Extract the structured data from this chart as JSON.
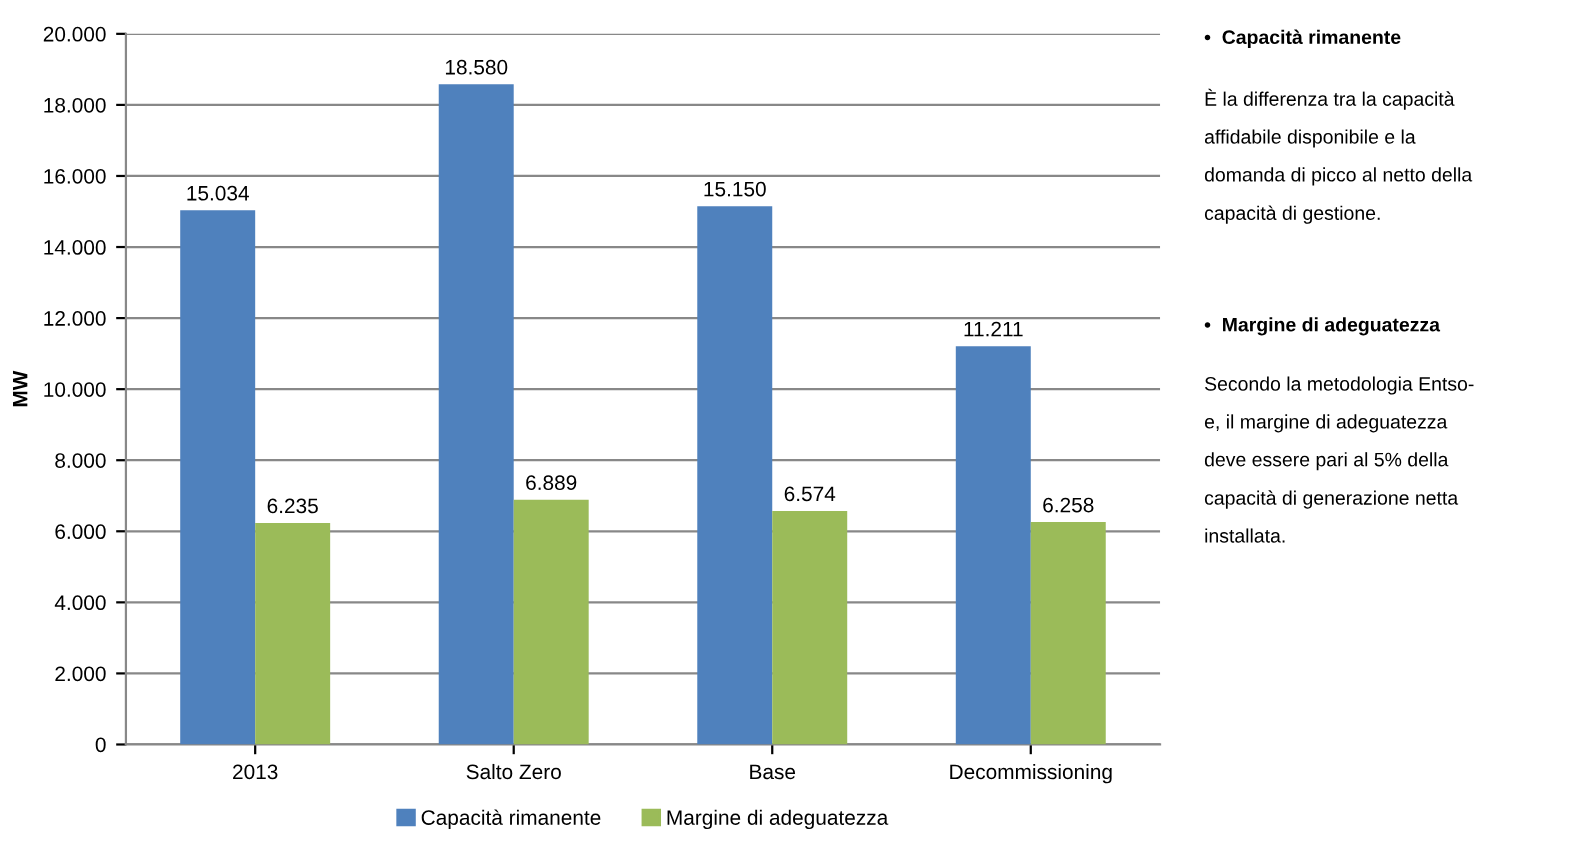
{
  "chart_data": {
    "type": "bar",
    "ylabel": "MW",
    "categories": [
      "2013",
      "Salto Zero",
      "Base",
      "Decommissioning"
    ],
    "series": [
      {
        "name": "Capacità rimanente",
        "color": "#4f81bd",
        "values": [
          15034,
          18580,
          15150,
          11211
        ],
        "value_labels": [
          "15.034",
          "18.580",
          "15.150",
          "11.211"
        ]
      },
      {
        "name": "Margine di adeguatezza",
        "color": "#9bbb59",
        "values": [
          6235,
          6889,
          6574,
          6258
        ],
        "value_labels": [
          "6.235",
          "6.889",
          "6.574",
          "6.258"
        ]
      }
    ],
    "ylim": [
      0,
      20000
    ],
    "yticks": [
      0,
      {
        "value": 2000,
        "label": "2.000"
      },
      {
        "value": 4000,
        "label": "4.000"
      },
      {
        "value": 6000,
        "label": "6.000"
      },
      {
        "value": 8000,
        "label": "8.000"
      },
      {
        "value": 10000,
        "label": "10.000"
      },
      {
        "value": 12000,
        "label": "12.000"
      },
      {
        "value": 14000,
        "label": "14.000"
      },
      {
        "value": 16000,
        "label": "16.000"
      },
      {
        "value": 18000,
        "label": "18.000"
      },
      {
        "value": 20000,
        "label": "20.000"
      }
    ],
    "grid": "y",
    "legend": "bottom",
    "annotations": [
      "•  Capacità rimanente",
      "È la differenza tra la capacità\naffidabile disponibile e la\ndomanda di picco al netto della\ncapacità di gestione.",
      "•  Margine di adeguatezza",
      "Secondo la metodologia Entso-\ne, il margine di adeguatezza\ndeve essere pari al 5% della\ncapacità di generazione netta\ninstallata."
    ]
  }
}
